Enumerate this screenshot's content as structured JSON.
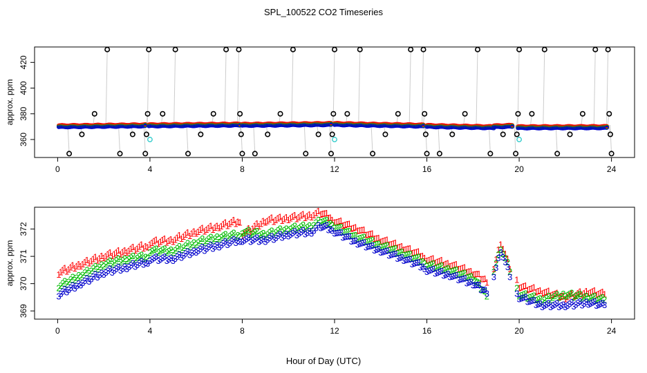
{
  "title": "SPL_100522  CO2 Timeseries",
  "xlabel": "Hour of Day (UTC)",
  "colors": {
    "ch1": "#ff0000",
    "ch2": "#00bb00",
    "ch3": "#0000cc",
    "flag": "#000000",
    "cal": "#33cccc",
    "dotline": "#999999"
  },
  "chart_data": [
    {
      "type": "scatter",
      "title": "SPL_100522  CO2 Timeseries",
      "xlabel": "",
      "ylabel": "approx. ppm",
      "xlim": [
        -1,
        25
      ],
      "ylim": [
        346,
        432
      ],
      "xticks": [
        0,
        4,
        8,
        12,
        16,
        20,
        24
      ],
      "yticks": [
        360,
        380,
        400,
        420
      ],
      "grid": false,
      "legend": "none",
      "baseline_segments": [
        {
          "x0": 0.05,
          "x1": 3.8,
          "y0": 370.3,
          "y1": 371.0
        },
        {
          "x0": 3.95,
          "x1": 7.9,
          "y0": 371.0,
          "y1": 371.6
        },
        {
          "x0": 8.0,
          "x1": 11.85,
          "y0": 371.4,
          "y1": 372.0
        },
        {
          "x0": 12.0,
          "x1": 15.85,
          "y0": 372.0,
          "y1": 370.8
        },
        {
          "x0": 16.0,
          "x1": 18.9,
          "y0": 370.5,
          "y1": 369.5
        },
        {
          "x0": 18.9,
          "x1": 19.7,
          "y0": 370.2,
          "y1": 370.6
        },
        {
          "x0": 19.95,
          "x1": 23.8,
          "y0": 369.5,
          "y1": 369.6
        }
      ],
      "flag_points": [
        {
          "x": 0.5,
          "y": 349
        },
        {
          "x": 1.05,
          "y": 364
        },
        {
          "x": 1.6,
          "y": 380
        },
        {
          "x": 2.15,
          "y": 430
        },
        {
          "x": 2.7,
          "y": 349
        },
        {
          "x": 3.25,
          "y": 364
        },
        {
          "x": 3.8,
          "y": 349
        },
        {
          "x": 3.85,
          "y": 364
        },
        {
          "x": 3.9,
          "y": 380
        },
        {
          "x": 3.95,
          "y": 430
        },
        {
          "x": 4.55,
          "y": 380
        },
        {
          "x": 5.1,
          "y": 430
        },
        {
          "x": 5.65,
          "y": 349
        },
        {
          "x": 6.2,
          "y": 364
        },
        {
          "x": 6.75,
          "y": 380
        },
        {
          "x": 7.3,
          "y": 430
        },
        {
          "x": 7.85,
          "y": 430
        },
        {
          "x": 7.9,
          "y": 380
        },
        {
          "x": 7.95,
          "y": 364
        },
        {
          "x": 8.0,
          "y": 349
        },
        {
          "x": 8.55,
          "y": 349
        },
        {
          "x": 9.1,
          "y": 364
        },
        {
          "x": 9.65,
          "y": 380
        },
        {
          "x": 10.2,
          "y": 430
        },
        {
          "x": 10.75,
          "y": 349
        },
        {
          "x": 11.3,
          "y": 364
        },
        {
          "x": 11.85,
          "y": 349
        },
        {
          "x": 11.9,
          "y": 364
        },
        {
          "x": 11.95,
          "y": 380
        },
        {
          "x": 12.0,
          "y": 430
        },
        {
          "x": 12.55,
          "y": 380
        },
        {
          "x": 13.1,
          "y": 430
        },
        {
          "x": 13.65,
          "y": 349
        },
        {
          "x": 14.2,
          "y": 364
        },
        {
          "x": 14.75,
          "y": 380
        },
        {
          "x": 15.3,
          "y": 430
        },
        {
          "x": 15.85,
          "y": 430
        },
        {
          "x": 15.9,
          "y": 380
        },
        {
          "x": 15.95,
          "y": 364
        },
        {
          "x": 16.0,
          "y": 349
        },
        {
          "x": 16.55,
          "y": 349
        },
        {
          "x": 17.1,
          "y": 364
        },
        {
          "x": 17.65,
          "y": 380
        },
        {
          "x": 18.2,
          "y": 430
        },
        {
          "x": 18.75,
          "y": 349
        },
        {
          "x": 19.3,
          "y": 364
        },
        {
          "x": 19.85,
          "y": 349
        },
        {
          "x": 19.9,
          "y": 364
        },
        {
          "x": 19.95,
          "y": 380
        },
        {
          "x": 20.0,
          "y": 430
        },
        {
          "x": 20.55,
          "y": 380
        },
        {
          "x": 21.1,
          "y": 430
        },
        {
          "x": 21.65,
          "y": 349
        },
        {
          "x": 22.2,
          "y": 364
        },
        {
          "x": 22.75,
          "y": 380
        },
        {
          "x": 23.3,
          "y": 430
        },
        {
          "x": 23.85,
          "y": 430
        },
        {
          "x": 23.9,
          "y": 380
        },
        {
          "x": 23.95,
          "y": 364
        },
        {
          "x": 24.0,
          "y": 349
        }
      ],
      "cal_points": [
        {
          "x": 4.0,
          "y": 360
        },
        {
          "x": 12.0,
          "y": 360
        },
        {
          "x": 20.0,
          "y": 360
        }
      ]
    },
    {
      "type": "scatter",
      "title": "",
      "xlabel": "Hour of Day (UTC)",
      "ylabel": "approx. ppm",
      "xlim": [
        -1,
        25
      ],
      "ylim": [
        368.7,
        372.8
      ],
      "xticks": [
        0,
        4,
        8,
        12,
        16,
        20,
        24
      ],
      "yticks": [
        369,
        370,
        371,
        372
      ],
      "grid": false,
      "legend": "none",
      "series": [
        {
          "marker": "1",
          "values": [
            [
              0.05,
              370.4
            ],
            [
              1.0,
              370.7
            ],
            [
              2.0,
              371.0
            ],
            [
              3.0,
              371.2
            ],
            [
              3.9,
              371.4
            ],
            [
              4.0,
              371.5
            ],
            [
              5.0,
              371.6
            ],
            [
              6.0,
              371.9
            ],
            [
              7.0,
              372.1
            ],
            [
              7.9,
              372.3
            ],
            [
              8.0,
              371.8
            ],
            [
              9.0,
              372.3
            ],
            [
              10.0,
              372.4
            ],
            [
              11.0,
              372.5
            ],
            [
              11.4,
              372.6
            ],
            [
              11.9,
              372.4
            ],
            [
              12.0,
              372.3
            ],
            [
              13.0,
              372.0
            ],
            [
              14.0,
              371.6
            ],
            [
              15.0,
              371.3
            ],
            [
              15.9,
              371.0
            ],
            [
              16.0,
              370.9
            ],
            [
              17.0,
              370.7
            ],
            [
              18.0,
              370.4
            ],
            [
              18.6,
              370.1
            ],
            [
              18.9,
              370.6
            ],
            [
              19.2,
              371.5
            ],
            [
              19.6,
              370.6
            ],
            [
              19.9,
              370.2
            ],
            [
              20.0,
              369.9
            ],
            [
              21.0,
              369.7
            ],
            [
              22.0,
              369.5
            ],
            [
              23.0,
              369.7
            ],
            [
              23.7,
              369.6
            ]
          ]
        },
        {
          "marker": "2",
          "values": [
            [
              0.05,
              369.9
            ],
            [
              1.0,
              370.3
            ],
            [
              2.0,
              370.7
            ],
            [
              3.0,
              370.9
            ],
            [
              3.9,
              371.0
            ],
            [
              4.0,
              371.2
            ],
            [
              5.0,
              371.2
            ],
            [
              6.0,
              371.5
            ],
            [
              7.0,
              371.7
            ],
            [
              7.9,
              371.8
            ],
            [
              8.0,
              371.9
            ],
            [
              9.0,
              371.8
            ],
            [
              10.0,
              372.0
            ],
            [
              11.0,
              372.1
            ],
            [
              11.4,
              372.3
            ],
            [
              11.9,
              372.2
            ],
            [
              12.0,
              372.1
            ],
            [
              13.0,
              371.7
            ],
            [
              14.0,
              371.4
            ],
            [
              15.0,
              371.1
            ],
            [
              15.9,
              370.8
            ],
            [
              16.0,
              370.7
            ],
            [
              17.0,
              370.5
            ],
            [
              18.0,
              370.2
            ],
            [
              18.6,
              369.6
            ],
            [
              18.9,
              370.5
            ],
            [
              19.2,
              371.3
            ],
            [
              19.6,
              370.5
            ],
            [
              19.9,
              369.9
            ],
            [
              20.0,
              369.6
            ],
            [
              21.0,
              369.4
            ],
            [
              22.0,
              369.6
            ],
            [
              23.0,
              369.5
            ],
            [
              23.7,
              369.4
            ]
          ]
        },
        {
          "marker": "3",
          "values": [
            [
              0.05,
              369.6
            ],
            [
              1.0,
              370.0
            ],
            [
              2.0,
              370.4
            ],
            [
              3.0,
              370.6
            ],
            [
              3.9,
              370.8
            ],
            [
              4.0,
              370.9
            ],
            [
              5.0,
              370.9
            ],
            [
              6.0,
              371.2
            ],
            [
              7.0,
              371.4
            ],
            [
              7.9,
              371.6
            ],
            [
              8.0,
              371.6
            ],
            [
              9.0,
              371.6
            ],
            [
              10.0,
              371.8
            ],
            [
              11.0,
              371.9
            ],
            [
              11.4,
              372.1
            ],
            [
              11.9,
              372.0
            ],
            [
              12.0,
              371.9
            ],
            [
              13.0,
              371.5
            ],
            [
              14.0,
              371.2
            ],
            [
              15.0,
              370.9
            ],
            [
              15.9,
              370.6
            ],
            [
              16.0,
              370.5
            ],
            [
              17.0,
              370.3
            ],
            [
              18.0,
              370.0
            ],
            [
              18.6,
              369.7
            ],
            [
              18.9,
              370.3
            ],
            [
              19.2,
              371.2
            ],
            [
              19.6,
              370.3
            ],
            [
              19.9,
              369.7
            ],
            [
              20.0,
              369.5
            ],
            [
              21.0,
              369.2
            ],
            [
              22.0,
              369.2
            ],
            [
              23.0,
              369.3
            ],
            [
              23.7,
              369.2
            ]
          ]
        }
      ]
    }
  ]
}
